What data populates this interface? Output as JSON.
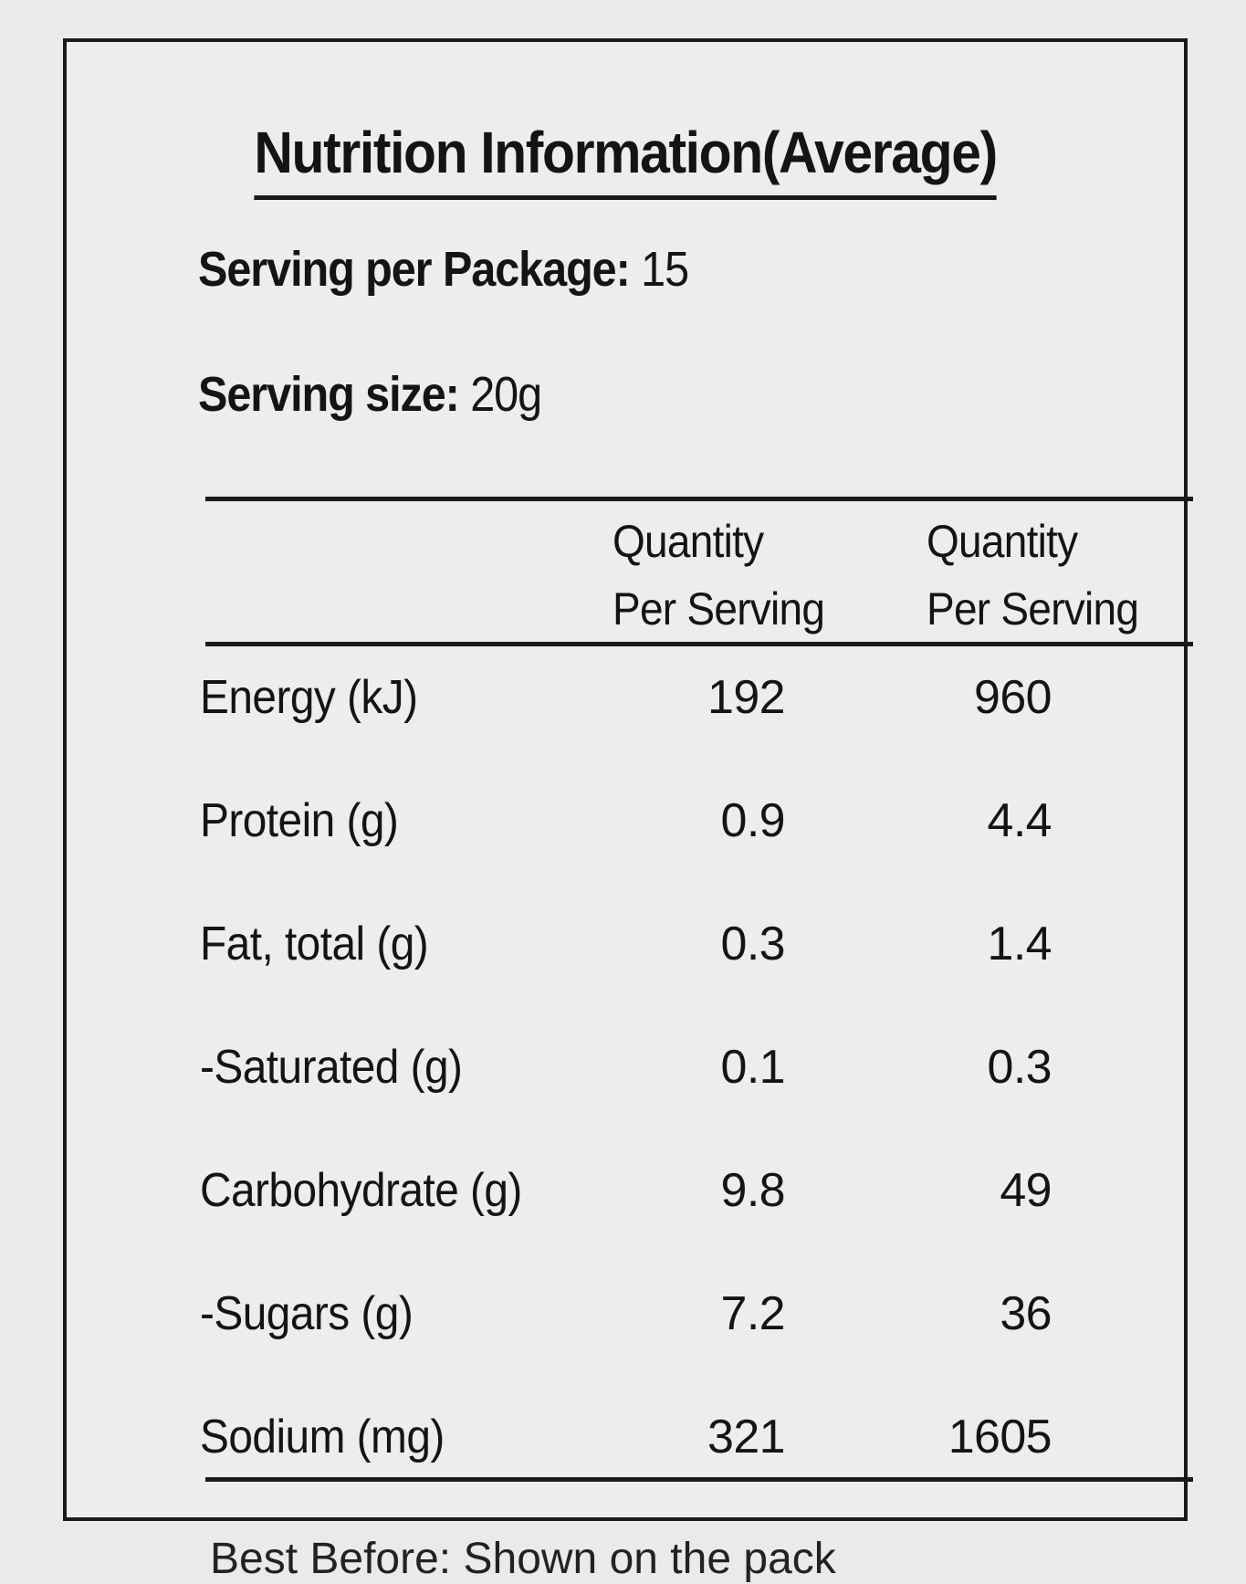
{
  "label": {
    "title": "Nutrition Information(Average)",
    "serving_per_package_label": "Serving per Package:",
    "serving_per_package_value": "15",
    "serving_size_label": "Serving size:",
    "serving_size_value": "20g"
  },
  "table": {
    "headers": [
      "Quantity Per Serving",
      "Quantity Per Serving"
    ],
    "header_lines": {
      "col1_line1": "Quantity",
      "col1_line2": "Per Serving",
      "col2_line1": "Quantity",
      "col2_line2": "Per Serving"
    },
    "rows": [
      {
        "nutrient": "Energy (kJ)",
        "per_serving": "192",
        "per_100": "960"
      },
      {
        "nutrient": "Protein (g)",
        "per_serving": "0.9",
        "per_100": "4.4"
      },
      {
        "nutrient": "Fat, total (g)",
        "per_serving": "0.3",
        "per_100": "1.4"
      },
      {
        "nutrient": "-Saturated (g)",
        "per_serving": "0.1",
        "per_100": "0.3"
      },
      {
        "nutrient": "Carbohydrate (g)",
        "per_serving": "9.8",
        "per_100": "49"
      },
      {
        "nutrient": "-Sugars (g)",
        "per_serving": "7.2",
        "per_100": "36"
      },
      {
        "nutrient": "Sodium (mg)",
        "per_serving": "321",
        "per_100": "1605"
      }
    ]
  },
  "footer": {
    "partial_text": "Best Before: Shown on the pack"
  }
}
